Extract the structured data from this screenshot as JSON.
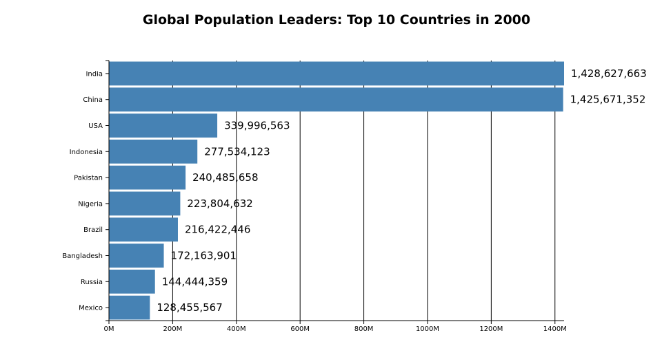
{
  "chart_data": {
    "type": "bar",
    "orientation": "horizontal",
    "title": "Global Population Leaders: Top 10 Countries in 2000",
    "xlabel": "",
    "ylabel": "",
    "categories": [
      "India",
      "China",
      "USA",
      "Indonesia",
      "Pakistan",
      "Nigeria",
      "Brazil",
      "Bangladesh",
      "Russia",
      "Mexico"
    ],
    "values": [
      1428627663,
      1425671352,
      339996563,
      277534123,
      240485658,
      223804632,
      216422446,
      172163901,
      144444359,
      128455567
    ],
    "data_labels": [
      "1,428,627,663",
      "1,425,671,352",
      "339,996,563",
      "277,534,123",
      "240,485,658",
      "223,804,632",
      "216,422,446",
      "172,163,901",
      "144,444,359",
      "128,455,567"
    ],
    "xlim": [
      0,
      1428627663
    ],
    "x_ticks": [
      0,
      200000000,
      400000000,
      600000000,
      800000000,
      1000000000,
      1200000000,
      1400000000
    ],
    "x_tick_labels": [
      "0M",
      "200M",
      "400M",
      "600M",
      "800M",
      "1000M",
      "1200M",
      "1400M"
    ],
    "grid": "vertical",
    "legend": "none",
    "bar_color": "#4682b4"
  }
}
